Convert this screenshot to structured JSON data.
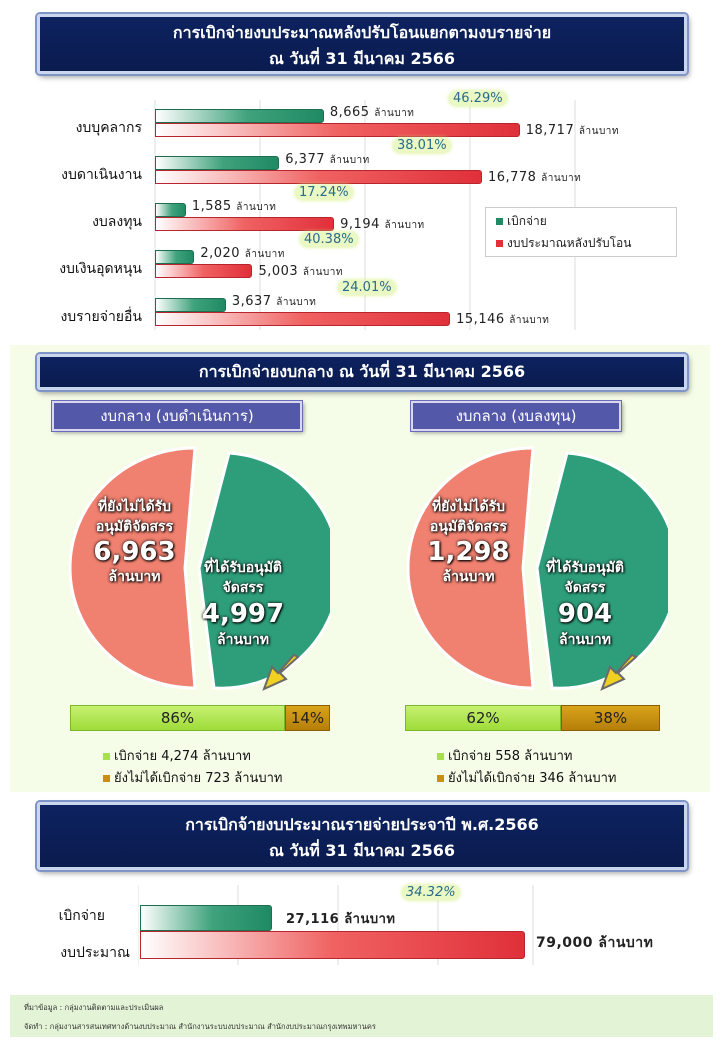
{
  "section1": {
    "title_line1": "การเบิกจ่ายงบประมาณหลังปรับโอนแยกตามงบรายจ่าย",
    "title_line2": "ณ วันที่ 31 มีนาคม 2566",
    "unit": "ล้านบาท",
    "legend": {
      "disbursed": "เบิกจ่าย",
      "budget": "งบประมาณหลังปรับโอน"
    },
    "colors": {
      "disbursed": "#1f8a63",
      "budget": "#e0303a"
    }
  },
  "chart_data": [
    {
      "type": "bar",
      "orientation": "horizontal",
      "categories": [
        "งบบุคลากร",
        "งบดาเนินงาน",
        "งบลงทุน",
        "งบเงินอุดหนุน",
        "งบรายจ่ายอื่น"
      ],
      "series": [
        {
          "name": "เบิกจ่าย",
          "values": [
            8665,
            6377,
            1585,
            2020,
            3637
          ],
          "labels": [
            "8,665",
            "6,377",
            "1,585",
            "2,020",
            "3,637"
          ]
        },
        {
          "name": "งบประมาณหลังปรับโอน",
          "values": [
            18717,
            16778,
            9194,
            5003,
            15146
          ],
          "labels": [
            "18,717",
            "16,778",
            "9,194",
            "5,003",
            "15,146"
          ]
        }
      ],
      "percent_labels": [
        "46.29%",
        "38.01%",
        "17.24%",
        "40.38%",
        "24.01%"
      ],
      "xlim": [
        0,
        24000
      ],
      "grid": true,
      "legend_position": "right"
    },
    {
      "type": "pie",
      "title": "งบกลาง (งบดำเนินการ)",
      "slices": [
        {
          "label": "ที่ยังไม่ได้รับ อนุมัติจัดสรร",
          "value": 6963,
          "display": "6,963"
        },
        {
          "label": "ที่ได้รับอนุมัติ จัดสรร",
          "value": 4997,
          "display": "4,997"
        }
      ]
    },
    {
      "type": "pie",
      "title": "งบกลาง (งบลงทุน)",
      "slices": [
        {
          "label": "ที่ยังไม่ได้รับ อนุมัติจัดสรร",
          "value": 1298,
          "display": "1,298"
        },
        {
          "label": "ที่ได้รับอนุมัติ จัดสรร",
          "value": 904,
          "display": "904"
        }
      ]
    },
    {
      "type": "bar",
      "orientation": "horizontal",
      "categories": [
        "เบิกจ่าย",
        "งบประมาณ"
      ],
      "values": [
        27116,
        79000
      ],
      "labels": [
        "27,116 ล้านบาท",
        "79,000 ล้านบาท"
      ],
      "percent_label": "34.32%"
    }
  ],
  "section2": {
    "title": "การเบิกจ่ายงบกลาง ณ วันที่ 31 มีนาคม 2566",
    "unit": "ล้านบาท",
    "pie_labels": {
      "pending_line1": "ที่ยังไม่ได้รับ",
      "pending_line2": "อนุมัติจัดสรร",
      "approved_line1": "ที่ได้รับอนุมัติ",
      "approved_line2": "จัดสรร"
    },
    "left": {
      "title": "งบกลาง (งบดำเนินการ)",
      "pending": "6,963",
      "approved": "4,997",
      "bar_pct1": "86%",
      "bar_pct2": "14%",
      "bar_value1": 0.86,
      "legend1": "เบิกจ่าย 4,274 ล้านบาท",
      "legend2": "ยังไม่ได้เบิกจ่าย 723 ล้านบาท"
    },
    "right": {
      "title": "งบกลาง (งบลงทุน)",
      "pending": "1,298",
      "approved": "904",
      "bar_pct1": "62%",
      "bar_pct2": "38%",
      "bar_value1": 0.62,
      "legend1": "เบิกจ่าย 558 ล้านบาท",
      "legend2": "ยังไม่ได้เบิกจ่าย 346 ล้านบาท"
    },
    "colors": {
      "pending": "#f08070",
      "approved": "#2e9e7a",
      "disbursed": "#a8e048",
      "not_disbursed": "#c8900e",
      "arrow": "#f0d020"
    }
  },
  "section3": {
    "title_line1": "การเบิกจ้ายงบประมาณรายจ่ายประจาปี พ.ศ.2566",
    "title_line2": "ณ วันที่ 31 มีนาคม 2566",
    "label_disbursed": "เบิกจ่าย",
    "label_budget": "งบประมาณ",
    "value_disbursed": "27,116 ล้านบาท",
    "value_budget": "79,000 ล้านบาท",
    "pct": "34.32%"
  },
  "footer": {
    "source": "ที่มาข้อมูล : กลุ่มงานติดตามและประเมินผล",
    "prepared": "จัดทำ : กลุ่มงานสารสนเทศทางด้านงบประมาณ สำนักงานระบบงบประมาณ สำนักงบประมาณกรุงเทพมหานคร"
  }
}
